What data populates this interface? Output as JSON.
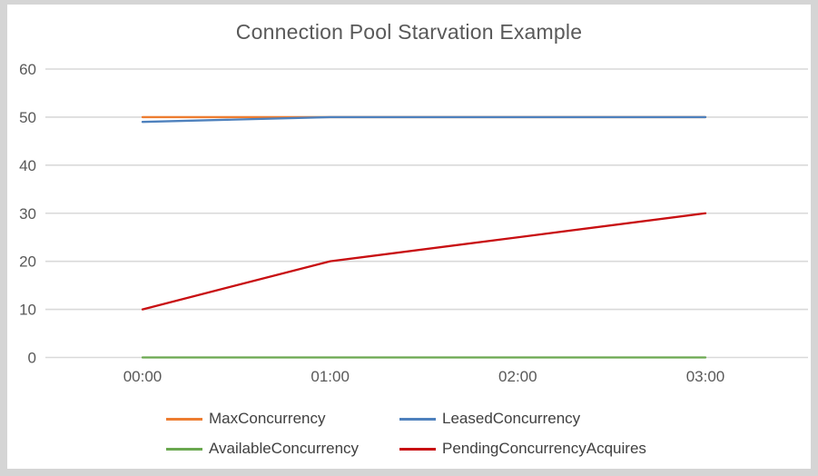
{
  "window": {
    "frame_color": "#d5d5d5",
    "card_color": "#ffffff"
  },
  "chart_data": {
    "type": "line",
    "title": "Connection Pool Starvation Example",
    "categories": [
      "00:00",
      "01:00",
      "02:00",
      "03:00"
    ],
    "series": [
      {
        "name": "MaxConcurrency",
        "color": "#ED7D31",
        "values": [
          50,
          50,
          50,
          50
        ]
      },
      {
        "name": "LeasedConcurrency",
        "color": "#4E81BD",
        "values": [
          49,
          50,
          50,
          50
        ]
      },
      {
        "name": "AvailableConcurrency",
        "color": "#6AA84F",
        "values": [
          0,
          0,
          0,
          0
        ]
      },
      {
        "name": "PendingConcurrencyAcquires",
        "color": "#C80F12",
        "values": [
          10,
          20,
          25,
          30
        ]
      }
    ],
    "ylim": [
      0,
      60
    ],
    "yticks": [
      0,
      10,
      20,
      30,
      40,
      50,
      60
    ],
    "grid": true,
    "legend_position": "bottom",
    "colors": {
      "title_text": "#595959",
      "axis_label_text": "#595959",
      "legend_text": "#404040",
      "gridline": "#D9D9D9"
    }
  }
}
